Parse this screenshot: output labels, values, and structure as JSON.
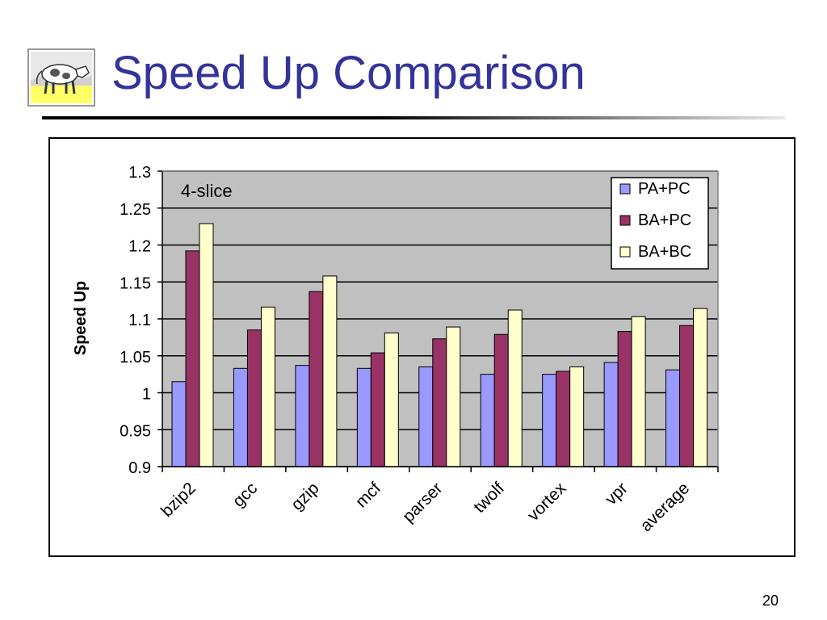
{
  "slide": {
    "title": "Speed Up Comparison",
    "page_number": "20"
  },
  "colors": {
    "title": "#333399",
    "plot_bg": "#c0c0c0",
    "series": [
      "#9999ff",
      "#993366",
      "#ffffcc"
    ]
  },
  "chart_data": {
    "type": "bar",
    "annotation": "4-slice",
    "xlabel": "",
    "ylabel": "Speed Up",
    "ylim": [
      0.9,
      1.3
    ],
    "yticks": [
      "1.3",
      "1.25",
      "1.2",
      "1.15",
      "1.1",
      "1.05",
      "1",
      "0.95",
      "0.9"
    ],
    "grid": true,
    "legend_position": "top-right",
    "categories": [
      "bzip2",
      "gcc",
      "gzip",
      "mcf",
      "parser",
      "twolf",
      "vortex",
      "vpr",
      "average"
    ],
    "series": [
      {
        "name": "PA+PC",
        "values": [
          1.015,
          1.033,
          1.037,
          1.033,
          1.035,
          1.025,
          1.025,
          1.041,
          1.031
        ]
      },
      {
        "name": "BA+PC",
        "values": [
          1.192,
          1.085,
          1.137,
          1.054,
          1.073,
          1.079,
          1.029,
          1.083,
          1.091
        ]
      },
      {
        "name": "BA+BC",
        "values": [
          1.229,
          1.116,
          1.158,
          1.081,
          1.089,
          1.112,
          1.035,
          1.103,
          1.114
        ]
      }
    ]
  }
}
